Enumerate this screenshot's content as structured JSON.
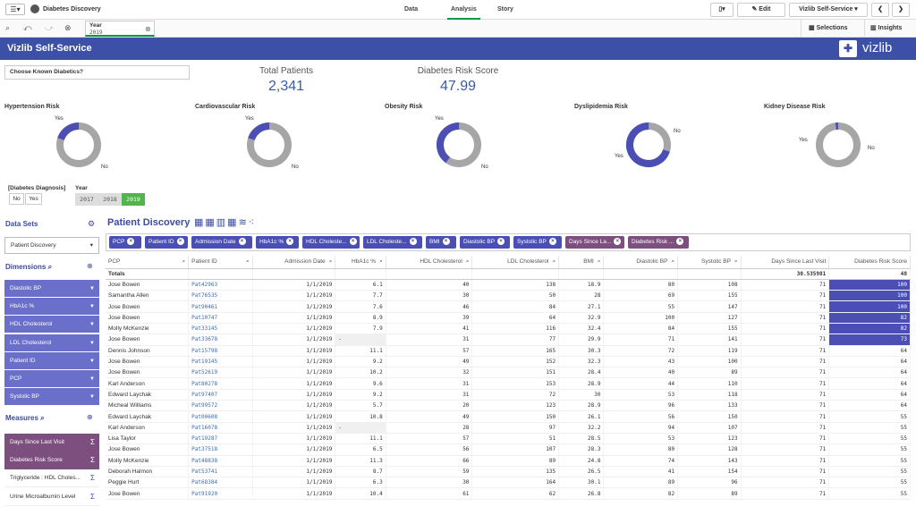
{
  "topbar": {
    "app_name": "Diabetes Discovery",
    "tabs": [
      "Data",
      "Analysis",
      "Story"
    ],
    "edit_label": "Edit",
    "sheet_name": "Vizlib Self-Service"
  },
  "toolbar": {
    "selection_field": "Year",
    "selection_value": "2019",
    "selections_label": "Selections",
    "insights_label": "Insights"
  },
  "header": {
    "title": "Vizlib Self-Service",
    "logo_text": "vizlib"
  },
  "filter_box": {
    "label": "Choose Known Diabetics?"
  },
  "kpis": [
    {
      "label": "Total Patients",
      "value": "2,341"
    },
    {
      "label": "Diabetes Risk Score",
      "value": "47.99"
    }
  ],
  "donuts": [
    {
      "title": "Hypertension Risk",
      "yes_label": "Yes",
      "no_label": "No",
      "yes_fraction": 0.2
    },
    {
      "title": "Cardiovascular Risk",
      "yes_label": "Yes",
      "no_label": "No",
      "yes_fraction": 0.2
    },
    {
      "title": "Obesity Risk",
      "yes_label": "Yes",
      "no_label": "No",
      "yes_fraction": 0.4
    },
    {
      "title": "Dyslipidemia Risk",
      "yes_label": "Yes",
      "no_label": "No",
      "yes_fraction": 0.7
    },
    {
      "title": "Kidney Disease Risk",
      "yes_label": "Yes",
      "no_label": "No",
      "yes_fraction": 0.02
    }
  ],
  "diagnosis_filter": {
    "label": "[Diabetes Diagnosis]",
    "options": [
      "No",
      "Yes"
    ]
  },
  "year_filter": {
    "label": "Year",
    "options": [
      "2017",
      "2018",
      "2019"
    ],
    "selected": "2019"
  },
  "sidebar": {
    "datasets_label": "Data Sets",
    "dataset_value": "Patient Discovery",
    "dimensions_label": "Dimensions",
    "dimensions": [
      "Diastolic BP",
      "HbA1c %",
      "HDL Cholesterol",
      "LDL Cholesterol",
      "Patient ID",
      "PCP",
      "Systolic BP"
    ],
    "measures_label": "Measures",
    "measures": [
      "Days Since Last Visit",
      "Diabetes Risk Score",
      "Triglyceride : HDL Choles...",
      "Urine Microalbumin Level"
    ]
  },
  "table_title": "Patient Discovery",
  "chips": [
    {
      "label": "PCP",
      "color": "#4b4fb3"
    },
    {
      "label": "Patient ID",
      "color": "#4b4fb3"
    },
    {
      "label": "Admission Date",
      "color": "#4b4fb3"
    },
    {
      "label": "HbA1c %",
      "color": "#4b4fb3"
    },
    {
      "label": "HDL Choleste...",
      "color": "#4b4fb3"
    },
    {
      "label": "LDL Choleste...",
      "color": "#4b4fb3"
    },
    {
      "label": "BMI",
      "color": "#4b4fb3"
    },
    {
      "label": "Diastolic BP",
      "color": "#4b4fb3"
    },
    {
      "label": "Systolic BP",
      "color": "#4b4fb3"
    },
    {
      "label": "Days Since La...",
      "color": "#7d4f7f"
    },
    {
      "label": "Diabetes Risk ...",
      "color": "#7d4f7f"
    }
  ],
  "table": {
    "columns": [
      "PCP",
      "Patient ID",
      "Admission Date",
      "HbA1c %",
      "HDL Cholesterol",
      "LDL Cholesterol",
      "BMI",
      "Diastolic BP",
      "Systolic BP",
      "Days Since Last Visit",
      "Diabetes Risk Score"
    ],
    "totals_label": "Totals",
    "totals": {
      "days": "30.535981",
      "risk": "48"
    },
    "rows": [
      [
        "Jose Bowen",
        "Pat42963",
        "1/1/2019",
        "6.1",
        "40",
        "138",
        "18.9",
        "80",
        "108",
        "71",
        "100"
      ],
      [
        "Samantha Allen",
        "Pat76535",
        "1/1/2019",
        "7.7",
        "30",
        "50",
        "28",
        "69",
        "155",
        "71",
        "100"
      ],
      [
        "Jose Bowen",
        "Pat90461",
        "1/1/2019",
        "7.6",
        "46",
        "84",
        "27.1",
        "55",
        "147",
        "71",
        "100"
      ],
      [
        "Jose Bowen",
        "Pat10747",
        "1/1/2019",
        "8.9",
        "39",
        "64",
        "32.9",
        "100",
        "127",
        "71",
        "82"
      ],
      [
        "Molly McKenzie",
        "Pat33145",
        "1/1/2019",
        "7.9",
        "41",
        "116",
        "32.4",
        "84",
        "155",
        "71",
        "82"
      ],
      [
        "Jose Bowen",
        "Pat33678",
        "1/1/2019",
        "-",
        "31",
        "77",
        "29.9",
        "71",
        "141",
        "71",
        "73"
      ],
      [
        "Dennis Johnson",
        "Pat15798",
        "1/1/2019",
        "11.1",
        "57",
        "165",
        "30.3",
        "72",
        "119",
        "71",
        "64"
      ],
      [
        "Jose Bowen",
        "Pat19145",
        "1/1/2019",
        "9.2",
        "49",
        "152",
        "32.3",
        "43",
        "100",
        "71",
        "64"
      ],
      [
        "Jose Bowen",
        "Pat52619",
        "1/1/2019",
        "10.2",
        "32",
        "151",
        "28.4",
        "40",
        "89",
        "71",
        "64"
      ],
      [
        "Karl Anderson",
        "Pat80278",
        "1/1/2019",
        "9.6",
        "31",
        "153",
        "28.9",
        "44",
        "110",
        "71",
        "64"
      ],
      [
        "Edward Laychak",
        "Pat97407",
        "1/1/2019",
        "9.2",
        "31",
        "72",
        "30",
        "53",
        "118",
        "71",
        "64"
      ],
      [
        "Micheal Williams",
        "Pat99572",
        "1/1/2019",
        "5.7",
        "20",
        "123",
        "28.9",
        "96",
        "133",
        "71",
        "64"
      ],
      [
        "Edward Laychak",
        "Pat00608",
        "1/1/2019",
        "10.8",
        "49",
        "150",
        "26.1",
        "56",
        "150",
        "71",
        "55"
      ],
      [
        "Karl Anderson",
        "Pat16078",
        "1/1/2019",
        "-",
        "28",
        "97",
        "32.2",
        "94",
        "107",
        "71",
        "55"
      ],
      [
        "Lisa Taylor",
        "Pat19287",
        "1/1/2019",
        "11.1",
        "57",
        "51",
        "28.5",
        "53",
        "123",
        "71",
        "55"
      ],
      [
        "Jose Bowen",
        "Pat37518",
        "1/1/2019",
        "6.5",
        "56",
        "107",
        "28.3",
        "80",
        "128",
        "71",
        "55"
      ],
      [
        "Molly McKenzie",
        "Pat48838",
        "1/1/2019",
        "11.3",
        "66",
        "89",
        "24.8",
        "74",
        "143",
        "71",
        "55"
      ],
      [
        "Deborah Halmon",
        "Pat53741",
        "1/1/2019",
        "8.7",
        "59",
        "135",
        "26.5",
        "41",
        "154",
        "71",
        "55"
      ],
      [
        "Peggie Hurt",
        "Pat68384",
        "1/1/2019",
        "6.3",
        "30",
        "164",
        "30.1",
        "89",
        "96",
        "71",
        "55"
      ],
      [
        "Jose Bowen",
        "Pat91920",
        "1/1/2019",
        "10.4",
        "61",
        "62",
        "26.8",
        "82",
        "89",
        "71",
        "55"
      ]
    ]
  },
  "colors": {
    "header_blue": "#3c50a8",
    "donut_yes": "#4b4fb3",
    "donut_no": "#a6a6a6",
    "measure_purple": "#7d4f7f",
    "dimension_blue": "#6a6fc9",
    "selected_green": "#52b44c"
  }
}
